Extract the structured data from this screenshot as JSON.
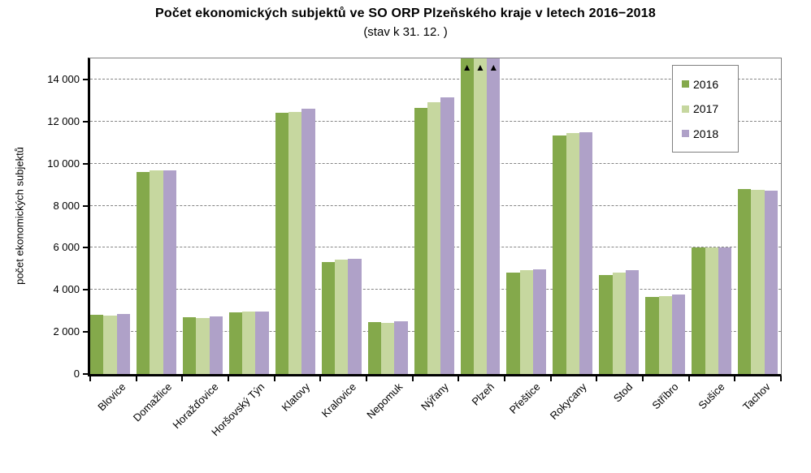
{
  "title": "Počet ekonomických subjektů ve SO ORP Plzeňského kraje v letech 2016−2018",
  "subtitle": "(stav k 31. 12. )",
  "colors": {
    "background": "#FFFFFF",
    "text": "#000000",
    "axis": "#000000",
    "gridline": "#858585",
    "plot_border": "#808080",
    "legend_border": "#808080",
    "series_2016": "#84A94B",
    "series_2017": "#C6D79F",
    "series_2018": "#AFA1C8"
  },
  "chart_data": {
    "type": "bar",
    "title": "Počet ekonomických subjektů ve SO ORP Plzeňského kraje v letech 2016−2018",
    "subtitle": "(stav k 31. 12. )",
    "xlabel": "",
    "ylabel": "počet ekonomických subjektů",
    "ylim": [
      0,
      15000
    ],
    "yticks": [
      0,
      2000,
      4000,
      6000,
      8000,
      10000,
      12000,
      14000
    ],
    "ytick_labels": [
      "0",
      "2 000",
      "4 000",
      "6 000",
      "8 000",
      "10 000",
      "12 000",
      "14 000"
    ],
    "grid": "horizontal-dashed",
    "legend_position": "inside-top-right",
    "categories": [
      "Blovice",
      "Domažlice",
      "Horažďovice",
      "Horšovský Týn",
      "Klatovy",
      "Kralovice",
      "Nepomuk",
      "Nýřany",
      "Plzeň",
      "Přeštice",
      "Rokycany",
      "Stod",
      "Stříbro",
      "Sušice",
      "Tachov"
    ],
    "series": [
      {
        "name": "2016",
        "color": "#84A94B",
        "values": [
          2800,
          9620,
          2700,
          2940,
          12400,
          5330,
          2450,
          12650,
          15000,
          4820,
          11340,
          4710,
          3650,
          6000,
          8800
        ]
      },
      {
        "name": "2017",
        "color": "#C6D79F",
        "values": [
          2790,
          9680,
          2670,
          2980,
          12470,
          5440,
          2430,
          12900,
          15000,
          4920,
          11450,
          4830,
          3720,
          6000,
          8760
        ]
      },
      {
        "name": "2018",
        "color": "#AFA1C8",
        "values": [
          2870,
          9670,
          2750,
          2980,
          12600,
          5490,
          2490,
          13150,
          15000,
          4990,
          11490,
          4950,
          3780,
          6030,
          8700
        ]
      }
    ],
    "clipped_category": "Plzeň",
    "clipped_marker": "▲"
  }
}
